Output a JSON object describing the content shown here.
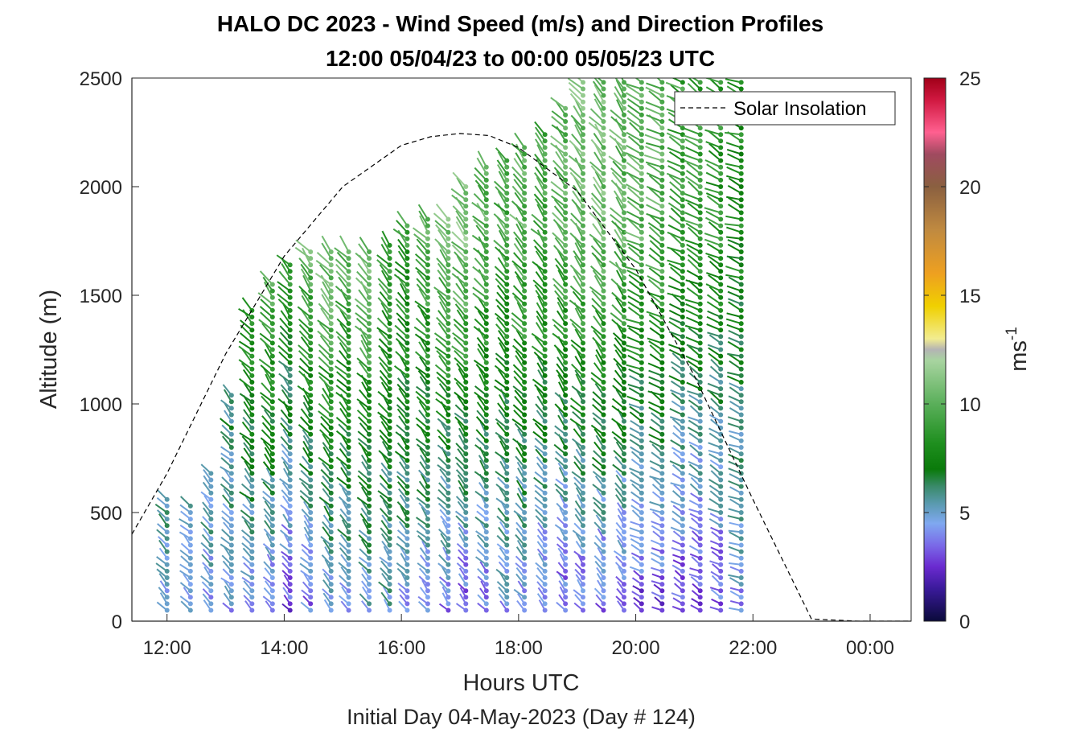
{
  "chart_data": {
    "type": "scatter",
    "title": "HALO DC 2023 - Wind Speed (m/s) and Direction Profiles",
    "subtitle": "12:00 05/04/23 to 00:00 05/05/23  UTC",
    "xlabel": "Hours UTC",
    "xlabel_sub": "Initial Day 04-May-2023 (Day # 124)",
    "ylabel": "Altitude (m)",
    "xlim": [
      11.4,
      24.7
    ],
    "ylim": [
      0,
      2500
    ],
    "x_ticks": [
      {
        "value": 12,
        "label": "12:00"
      },
      {
        "value": 14,
        "label": "14:00"
      },
      {
        "value": 16,
        "label": "16:00"
      },
      {
        "value": 18,
        "label": "18:00"
      },
      {
        "value": 20,
        "label": "20:00"
      },
      {
        "value": 22,
        "label": "22:00"
      },
      {
        "value": 24,
        "label": "00:00"
      }
    ],
    "y_ticks": [
      {
        "value": 0,
        "label": "0"
      },
      {
        "value": 500,
        "label": "500"
      },
      {
        "value": 1000,
        "label": "1000"
      },
      {
        "value": 1500,
        "label": "1500"
      },
      {
        "value": 2000,
        "label": "2000"
      },
      {
        "value": 2500,
        "label": "2500"
      }
    ],
    "colorbar": {
      "label": "ms",
      "label_superscript": "-1",
      "range": [
        0,
        25
      ],
      "ticks": [
        {
          "value": 0,
          "label": "0"
        },
        {
          "value": 5,
          "label": "5"
        },
        {
          "value": 10,
          "label": "10"
        },
        {
          "value": 15,
          "label": "15"
        },
        {
          "value": 20,
          "label": "20"
        },
        {
          "value": 25,
          "label": "25"
        }
      ],
      "stops": [
        {
          "v": 0,
          "color": "#0a0a3a"
        },
        {
          "v": 1.5,
          "color": "#3a1a9a"
        },
        {
          "v": 2.5,
          "color": "#6a2acf"
        },
        {
          "v": 3.5,
          "color": "#7a6ae8"
        },
        {
          "v": 4.5,
          "color": "#7fa8f0"
        },
        {
          "v": 5.4,
          "color": "#5a9ab0"
        },
        {
          "v": 6.2,
          "color": "#3a8a6a"
        },
        {
          "v": 7.0,
          "color": "#0a7a0a"
        },
        {
          "v": 8.2,
          "color": "#1f8f1f"
        },
        {
          "v": 10.0,
          "color": "#5aaf5a"
        },
        {
          "v": 12.0,
          "color": "#a8d4a0"
        },
        {
          "v": 12.5,
          "color": "#b4b4b4"
        },
        {
          "v": 13.0,
          "color": "#f2ec90"
        },
        {
          "v": 14.5,
          "color": "#f0d000"
        },
        {
          "v": 16.0,
          "color": "#eea020"
        },
        {
          "v": 18.0,
          "color": "#c08a40"
        },
        {
          "v": 20.0,
          "color": "#8a6040"
        },
        {
          "v": 21.5,
          "color": "#a04a60"
        },
        {
          "v": 22.5,
          "color": "#ff6090"
        },
        {
          "v": 24.0,
          "color": "#d01840"
        },
        {
          "v": 25.0,
          "color": "#a00018"
        }
      ]
    },
    "legend": {
      "entries": [
        "Solar Insolation"
      ],
      "location": "top-right"
    },
    "solar_insolation": {
      "style": "dashed",
      "color": "#000000",
      "x": [
        11.4,
        12.0,
        13.0,
        14.0,
        15.0,
        16.0,
        16.5,
        17.0,
        17.5,
        18.0,
        19.0,
        20.0,
        21.0,
        22.0,
        23.0,
        23.8,
        24.7
      ],
      "y": [
        400,
        680,
        1230,
        1680,
        2000,
        2190,
        2230,
        2245,
        2235,
        2180,
        1980,
        1620,
        1130,
        560,
        10,
        0,
        0
      ]
    },
    "wind_profiles": {
      "note_fields": "each profile: x = time (hours UTC), top = highest altitude (m) of wind barbs, low_altitude_speed, high_altitude_speed (m/s), direction_deg (wind from)",
      "profiles": [
        {
          "x": 12.0,
          "top": 560,
          "low_speed": 4.5,
          "high_speed": 8.5,
          "direction_deg": 315
        },
        {
          "x": 12.4,
          "top": 540,
          "low_speed": 4.0,
          "high_speed": 8.0,
          "direction_deg": 315
        },
        {
          "x": 12.75,
          "top": 700,
          "low_speed": 4.5,
          "high_speed": 7.5,
          "direction_deg": 315
        },
        {
          "x": 13.1,
          "top": 1050,
          "low_speed": 4.5,
          "high_speed": 7.5,
          "direction_deg": 315
        },
        {
          "x": 13.45,
          "top": 1450,
          "low_speed": 4.0,
          "high_speed": 10.0,
          "direction_deg": 315
        },
        {
          "x": 13.8,
          "top": 1560,
          "low_speed": 3.5,
          "high_speed": 11.0,
          "direction_deg": 320
        },
        {
          "x": 14.1,
          "top": 1650,
          "low_speed": 3.0,
          "high_speed": 9.0,
          "direction_deg": 320
        },
        {
          "x": 14.45,
          "top": 1720,
          "low_speed": 3.5,
          "high_speed": 10.5,
          "direction_deg": 320
        },
        {
          "x": 14.8,
          "top": 1700,
          "low_speed": 4.0,
          "high_speed": 11.5,
          "direction_deg": 320
        },
        {
          "x": 15.1,
          "top": 1720,
          "low_speed": 4.5,
          "high_speed": 10.5,
          "direction_deg": 320
        },
        {
          "x": 15.45,
          "top": 1720,
          "low_speed": 4.5,
          "high_speed": 11.0,
          "direction_deg": 320
        },
        {
          "x": 15.8,
          "top": 1750,
          "low_speed": 5.0,
          "high_speed": 9.5,
          "direction_deg": 320
        },
        {
          "x": 16.1,
          "top": 1830,
          "low_speed": 4.5,
          "high_speed": 9.0,
          "direction_deg": 320
        },
        {
          "x": 16.45,
          "top": 1850,
          "low_speed": 4.0,
          "high_speed": 10.0,
          "direction_deg": 320
        },
        {
          "x": 16.8,
          "top": 1870,
          "low_speed": 3.5,
          "high_speed": 10.5,
          "direction_deg": 320
        },
        {
          "x": 17.1,
          "top": 2020,
          "low_speed": 3.0,
          "high_speed": 11.0,
          "direction_deg": 320
        },
        {
          "x": 17.45,
          "top": 2100,
          "low_speed": 3.5,
          "high_speed": 10.0,
          "direction_deg": 320
        },
        {
          "x": 17.8,
          "top": 2130,
          "low_speed": 4.0,
          "high_speed": 9.5,
          "direction_deg": 320
        },
        {
          "x": 18.1,
          "top": 2200,
          "low_speed": 4.0,
          "high_speed": 10.0,
          "direction_deg": 320
        },
        {
          "x": 18.45,
          "top": 2250,
          "low_speed": 3.5,
          "high_speed": 9.5,
          "direction_deg": 320
        },
        {
          "x": 18.8,
          "top": 2380,
          "low_speed": 3.0,
          "high_speed": 10.0,
          "direction_deg": 320
        },
        {
          "x": 19.1,
          "top": 2490,
          "low_speed": 3.0,
          "high_speed": 10.5,
          "direction_deg": 320
        },
        {
          "x": 19.45,
          "top": 2490,
          "low_speed": 3.0,
          "high_speed": 10.5,
          "direction_deg": 320
        },
        {
          "x": 19.8,
          "top": 2490,
          "low_speed": 3.0,
          "high_speed": 10.0,
          "direction_deg": 320
        },
        {
          "x": 20.1,
          "top": 2490,
          "low_speed": 2.5,
          "high_speed": 10.0,
          "direction_deg": 300
        },
        {
          "x": 20.45,
          "top": 2490,
          "low_speed": 2.5,
          "high_speed": 10.0,
          "direction_deg": 300
        },
        {
          "x": 20.8,
          "top": 2490,
          "low_speed": 2.5,
          "high_speed": 9.0,
          "direction_deg": 300
        },
        {
          "x": 21.1,
          "top": 2490,
          "low_speed": 2.5,
          "high_speed": 9.0,
          "direction_deg": 300
        },
        {
          "x": 21.45,
          "top": 2490,
          "low_speed": 3.0,
          "high_speed": 8.5,
          "direction_deg": 300
        },
        {
          "x": 21.8,
          "top": 2490,
          "low_speed": 4.0,
          "high_speed": 8.0,
          "direction_deg": 290
        }
      ]
    }
  }
}
